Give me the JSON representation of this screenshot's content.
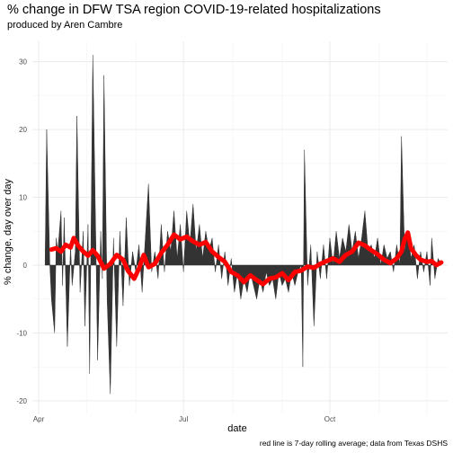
{
  "title": "% change in DFW TSA region COVID-19-related hospitalizations",
  "subtitle": "produced by Aren Cambre",
  "caption": "red line is 7-day rolling average; data from Texas DSHS",
  "chart_data": {
    "type": "area",
    "xlabel": "date",
    "ylabel": "% change, day over day",
    "x_ticks": [
      "Apr",
      "Jul",
      "Oct"
    ],
    "y_ticks": [
      "-20",
      "-10",
      "0",
      "10",
      "20",
      "30"
    ],
    "ylim": [
      -22,
      33
    ],
    "xlim": [
      "2020-03-28",
      "2020-12-14"
    ],
    "grid": true,
    "colors": {
      "daily": "#333333",
      "rolling": "#ff0000"
    },
    "series": [
      {
        "kind": "daily",
        "points": [
          [
            "2020-04-05",
            0
          ],
          [
            "2020-04-06",
            20
          ],
          [
            "2020-04-08",
            0
          ],
          [
            "2020-04-09",
            -5
          ],
          [
            "2020-04-11",
            -10
          ],
          [
            "2020-04-12",
            4
          ],
          [
            "2020-04-13",
            2
          ],
          [
            "2020-04-15",
            8
          ],
          [
            "2020-04-16",
            -3
          ],
          [
            "2020-04-17",
            7
          ],
          [
            "2020-04-19",
            -12
          ],
          [
            "2020-04-21",
            3
          ],
          [
            "2020-04-22",
            -3
          ],
          [
            "2020-04-24",
            2
          ],
          [
            "2020-04-25",
            22
          ],
          [
            "2020-04-27",
            -4
          ],
          [
            "2020-04-29",
            5
          ],
          [
            "2020-04-30",
            -9
          ],
          [
            "2020-05-02",
            6
          ],
          [
            "2020-05-03",
            -16
          ],
          [
            "2020-05-05",
            31
          ],
          [
            "2020-05-07",
            2
          ],
          [
            "2020-05-08",
            -14
          ],
          [
            "2020-05-10",
            5
          ],
          [
            "2020-05-11",
            -2
          ],
          [
            "2020-05-12",
            28
          ],
          [
            "2020-05-14",
            -5
          ],
          [
            "2020-05-16",
            -19
          ],
          [
            "2020-05-18",
            4
          ],
          [
            "2020-05-20",
            -12
          ],
          [
            "2020-05-22",
            5
          ],
          [
            "2020-05-24",
            -6
          ],
          [
            "2020-05-26",
            7
          ],
          [
            "2020-05-28",
            -3
          ],
          [
            "2020-05-30",
            2
          ],
          [
            "2020-06-01",
            -1
          ],
          [
            "2020-06-03",
            3
          ],
          [
            "2020-06-05",
            -4
          ],
          [
            "2020-06-07",
            4
          ],
          [
            "2020-06-09",
            12
          ],
          [
            "2020-06-11",
            -1
          ],
          [
            "2020-06-13",
            2
          ],
          [
            "2020-06-15",
            -2
          ],
          [
            "2020-06-17",
            6
          ],
          [
            "2020-06-19",
            -1
          ],
          [
            "2020-06-21",
            5
          ],
          [
            "2020-06-23",
            2
          ],
          [
            "2020-06-25",
            8
          ],
          [
            "2020-06-27",
            1
          ],
          [
            "2020-06-29",
            6
          ],
          [
            "2020-07-01",
            -1
          ],
          [
            "2020-07-03",
            8
          ],
          [
            "2020-07-05",
            3
          ],
          [
            "2020-07-07",
            9
          ],
          [
            "2020-07-09",
            2
          ],
          [
            "2020-07-11",
            6
          ],
          [
            "2020-07-13",
            1
          ],
          [
            "2020-07-15",
            5
          ],
          [
            "2020-07-17",
            2
          ],
          [
            "2020-07-19",
            4
          ],
          [
            "2020-07-21",
            -1
          ],
          [
            "2020-07-23",
            3
          ],
          [
            "2020-07-25",
            -2
          ],
          [
            "2020-07-27",
            2
          ],
          [
            "2020-07-29",
            -3
          ],
          [
            "2020-07-31",
            1
          ],
          [
            "2020-08-02",
            -4
          ],
          [
            "2020-08-04",
            -1
          ],
          [
            "2020-08-06",
            -5
          ],
          [
            "2020-08-08",
            -2
          ],
          [
            "2020-08-10",
            -4
          ],
          [
            "2020-08-12",
            -1
          ],
          [
            "2020-08-14",
            -3
          ],
          [
            "2020-08-16",
            -5
          ],
          [
            "2020-08-18",
            -2
          ],
          [
            "2020-08-20",
            -4
          ],
          [
            "2020-08-22",
            -1
          ],
          [
            "2020-08-24",
            -3
          ],
          [
            "2020-08-26",
            -2
          ],
          [
            "2020-08-28",
            -5
          ],
          [
            "2020-08-30",
            -1
          ],
          [
            "2020-09-01",
            -3
          ],
          [
            "2020-09-03",
            -2
          ],
          [
            "2020-09-05",
            -4
          ],
          [
            "2020-09-07",
            -1
          ],
          [
            "2020-09-09",
            -3
          ],
          [
            "2020-09-11",
            -1
          ],
          [
            "2020-09-13",
            0
          ],
          [
            "2020-09-14",
            -15
          ],
          [
            "2020-09-15",
            17
          ],
          [
            "2020-09-17",
            -3
          ],
          [
            "2020-09-19",
            3
          ],
          [
            "2020-09-21",
            -9
          ],
          [
            "2020-09-23",
            2
          ],
          [
            "2020-09-25",
            -2
          ],
          [
            "2020-09-27",
            3
          ],
          [
            "2020-09-29",
            -2
          ],
          [
            "2020-10-01",
            4
          ],
          [
            "2020-10-03",
            0
          ],
          [
            "2020-10-05",
            5
          ],
          [
            "2020-10-07",
            1
          ],
          [
            "2020-10-09",
            4
          ],
          [
            "2020-10-11",
            2
          ],
          [
            "2020-10-13",
            6
          ],
          [
            "2020-10-15",
            2
          ],
          [
            "2020-10-17",
            5
          ],
          [
            "2020-10-19",
            1
          ],
          [
            "2020-10-21",
            4
          ],
          [
            "2020-10-23",
            8
          ],
          [
            "2020-10-25",
            2
          ],
          [
            "2020-10-27",
            3
          ],
          [
            "2020-10-29",
            1
          ],
          [
            "2020-10-31",
            4
          ],
          [
            "2020-11-02",
            0
          ],
          [
            "2020-11-04",
            3
          ],
          [
            "2020-11-06",
            1
          ],
          [
            "2020-11-08",
            2
          ],
          [
            "2020-11-10",
            -1
          ],
          [
            "2020-11-12",
            3
          ],
          [
            "2020-11-14",
            0
          ],
          [
            "2020-11-15",
            19
          ],
          [
            "2020-11-17",
            2
          ],
          [
            "2020-11-19",
            5
          ],
          [
            "2020-11-21",
            1
          ],
          [
            "2020-11-23",
            3
          ],
          [
            "2020-11-25",
            -2
          ],
          [
            "2020-11-27",
            2
          ],
          [
            "2020-11-29",
            -1
          ],
          [
            "2020-12-01",
            2
          ],
          [
            "2020-12-03",
            -3
          ],
          [
            "2020-12-04",
            4
          ],
          [
            "2020-12-06",
            -2
          ],
          [
            "2020-12-08",
            1
          ],
          [
            "2020-12-10",
            0
          ]
        ]
      },
      {
        "kind": "rolling",
        "points": [
          [
            "2020-04-09",
            2.3
          ],
          [
            "2020-04-12",
            2.5
          ],
          [
            "2020-04-15",
            2.0
          ],
          [
            "2020-04-18",
            3.0
          ],
          [
            "2020-04-21",
            2.6
          ],
          [
            "2020-04-23",
            4.0
          ],
          [
            "2020-04-26",
            2.8
          ],
          [
            "2020-04-29",
            2.0
          ],
          [
            "2020-05-02",
            1.4
          ],
          [
            "2020-05-05",
            2.2
          ],
          [
            "2020-05-08",
            1.4
          ],
          [
            "2020-05-12",
            -0.5
          ],
          [
            "2020-05-16",
            0.2
          ],
          [
            "2020-05-20",
            1.5
          ],
          [
            "2020-05-24",
            0.8
          ],
          [
            "2020-05-27",
            -0.8
          ],
          [
            "2020-05-31",
            -2.0
          ],
          [
            "2020-06-03",
            -0.5
          ],
          [
            "2020-06-06",
            1.5
          ],
          [
            "2020-06-09",
            -0.3
          ],
          [
            "2020-06-13",
            0.2
          ],
          [
            "2020-06-17",
            1.8
          ],
          [
            "2020-06-21",
            3.0
          ],
          [
            "2020-06-25",
            4.5
          ],
          [
            "2020-06-29",
            3.8
          ],
          [
            "2020-07-03",
            4.2
          ],
          [
            "2020-07-07",
            3.5
          ],
          [
            "2020-07-11",
            3.0
          ],
          [
            "2020-07-15",
            3.4
          ],
          [
            "2020-07-19",
            2.0
          ],
          [
            "2020-07-23",
            1.2
          ],
          [
            "2020-07-27",
            0.5
          ],
          [
            "2020-07-31",
            -1.0
          ],
          [
            "2020-08-04",
            -1.5
          ],
          [
            "2020-08-08",
            -2.5
          ],
          [
            "2020-08-12",
            -1.5
          ],
          [
            "2020-08-16",
            -2.2
          ],
          [
            "2020-08-20",
            -2.8
          ],
          [
            "2020-08-24",
            -2.0
          ],
          [
            "2020-08-28",
            -1.8
          ],
          [
            "2020-09-01",
            -1.2
          ],
          [
            "2020-09-05",
            -2.2
          ],
          [
            "2020-09-09",
            -1.0
          ],
          [
            "2020-09-13",
            -0.8
          ],
          [
            "2020-09-17",
            -0.2
          ],
          [
            "2020-09-21",
            -0.4
          ],
          [
            "2020-09-25",
            0.2
          ],
          [
            "2020-09-29",
            0.6
          ],
          [
            "2020-10-03",
            1.0
          ],
          [
            "2020-10-07",
            0.5
          ],
          [
            "2020-10-11",
            1.5
          ],
          [
            "2020-10-15",
            2.0
          ],
          [
            "2020-10-19",
            3.3
          ],
          [
            "2020-10-23",
            2.9
          ],
          [
            "2020-10-27",
            2.2
          ],
          [
            "2020-10-31",
            1.6
          ],
          [
            "2020-11-04",
            0.8
          ],
          [
            "2020-11-08",
            0.3
          ],
          [
            "2020-11-12",
            1.0
          ],
          [
            "2020-11-15",
            2.0
          ],
          [
            "2020-11-17",
            3.8
          ],
          [
            "2020-11-19",
            4.8
          ],
          [
            "2020-11-21",
            2.5
          ],
          [
            "2020-11-24",
            1.5
          ],
          [
            "2020-11-27",
            0.8
          ],
          [
            "2020-12-01",
            0.5
          ],
          [
            "2020-12-04",
            0.6
          ],
          [
            "2020-12-07",
            0.0
          ],
          [
            "2020-12-10",
            0.4
          ]
        ]
      }
    ]
  }
}
